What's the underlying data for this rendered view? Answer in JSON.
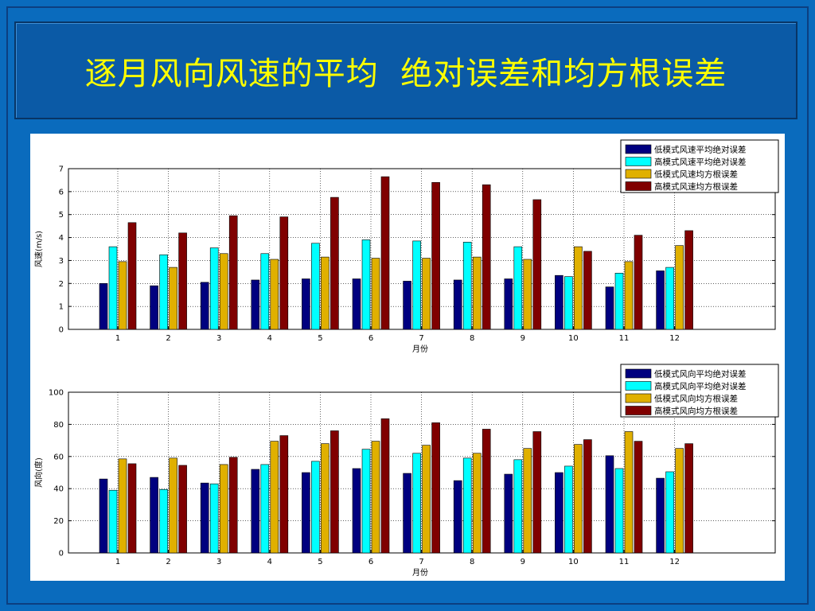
{
  "slide": {
    "title": "逐月风向风速的平均  绝对误差和均方根误差"
  },
  "colors": {
    "low_mae": "#00007f",
    "high_mae": "#00ffff",
    "low_rmse": "#e0b000",
    "high_rmse": "#800000"
  },
  "chart_data": [
    {
      "type": "bar",
      "title": "",
      "xlabel": "月份",
      "ylabel": "风速(m/s)",
      "ylim": [
        0,
        7
      ],
      "yticks": [
        0,
        1,
        2,
        3,
        4,
        5,
        6,
        7
      ],
      "grid": true,
      "legend": "top-right",
      "categories": [
        "1",
        "2",
        "3",
        "4",
        "5",
        "6",
        "7",
        "8",
        "9",
        "10",
        "11",
        "12"
      ],
      "series": [
        {
          "name": "低模式风速平均绝对误差",
          "values": [
            2.0,
            1.9,
            2.05,
            2.15,
            2.2,
            2.2,
            2.1,
            2.15,
            2.2,
            2.35,
            1.85,
            2.55
          ]
        },
        {
          "name": "高模式风速平均绝对误差",
          "values": [
            3.6,
            3.25,
            3.55,
            3.3,
            3.75,
            3.9,
            3.85,
            3.8,
            3.6,
            2.3,
            2.45,
            2.7
          ]
        },
        {
          "name": "低模式风速均方根误差",
          "values": [
            2.95,
            2.7,
            3.3,
            3.05,
            3.15,
            3.1,
            3.1,
            3.15,
            3.05,
            3.6,
            2.95,
            3.65
          ]
        },
        {
          "name": "高模式风速均方根误差",
          "values": [
            4.65,
            4.2,
            4.95,
            4.9,
            5.75,
            6.65,
            6.4,
            6.3,
            5.65,
            3.4,
            4.1,
            4.3
          ]
        }
      ]
    },
    {
      "type": "bar",
      "title": "",
      "xlabel": "月份",
      "ylabel": "风向(度)",
      "ylim": [
        0,
        100
      ],
      "yticks": [
        0,
        20,
        40,
        60,
        80,
        100
      ],
      "grid": true,
      "legend": "top-right",
      "categories": [
        "1",
        "2",
        "3",
        "4",
        "5",
        "6",
        "7",
        "8",
        "9",
        "10",
        "11",
        "12"
      ],
      "series": [
        {
          "name": "低模式风向平均绝对误差",
          "values": [
            46,
            47,
            43.5,
            52,
            50,
            52.5,
            49.5,
            45,
            49,
            50,
            60.5,
            46.5
          ]
        },
        {
          "name": "高模式风向平均绝对误差",
          "values": [
            39,
            39.5,
            43,
            55,
            57,
            64.5,
            62,
            59,
            58,
            54,
            52.5,
            50.5
          ]
        },
        {
          "name": "低模式风向均方根误差",
          "values": [
            58.5,
            59,
            55,
            69.5,
            68,
            69.5,
            67,
            62,
            65,
            67.5,
            75.5,
            65
          ]
        },
        {
          "name": "高模式风向均方根误差",
          "values": [
            55.5,
            54.5,
            59.5,
            73,
            76,
            83.5,
            81,
            77,
            75.5,
            70.5,
            69.5,
            68
          ]
        }
      ]
    }
  ]
}
